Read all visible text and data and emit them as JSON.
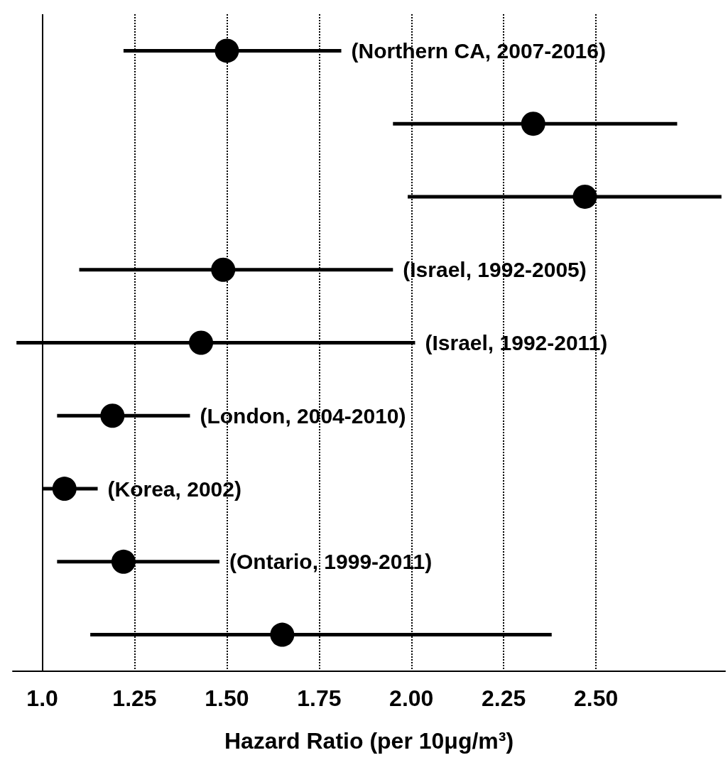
{
  "chart_data": {
    "type": "scatter",
    "orientation": "horizontal",
    "xlabel": "Hazard Ratio (per 10μg/m³)",
    "categories": [
      "(Northern CA, 2007-2016)",
      null,
      null,
      "(Israel, 1992-2005)",
      "(Israel, 1992-2011)",
      "(London, 2004-2010)",
      "(Korea, 2002)",
      "(Ontario, 1999-2011)",
      null
    ],
    "values": [
      1.5,
      2.33,
      2.47,
      1.49,
      1.43,
      1.19,
      1.06,
      1.22,
      1.65
    ],
    "errors": [
      [
        1.22,
        1.81
      ],
      [
        1.95,
        2.72
      ],
      [
        1.99,
        2.84
      ],
      [
        1.1,
        1.95
      ],
      [
        0.93,
        2.01
      ],
      [
        1.04,
        1.4
      ],
      [
        1.0,
        1.15
      ],
      [
        1.04,
        1.48
      ],
      [
        1.13,
        2.38
      ]
    ],
    "color": "#000000",
    "marker": "circle",
    "xlim": [
      0.92,
      2.85
    ],
    "xticks": [
      {
        "value": 1.0,
        "label": "1.0"
      },
      1.25,
      {
        "value": 1.5,
        "label": "1.50"
      },
      1.75,
      {
        "value": 2.0,
        "label": "2.00"
      },
      2.25,
      {
        "value": 2.5,
        "label": "2.50"
      }
    ],
    "ref_lines": [
      {
        "axis": "x",
        "value": 1.0,
        "color": "#000000"
      }
    ],
    "grid": "x",
    "tick_labels": "x"
  }
}
